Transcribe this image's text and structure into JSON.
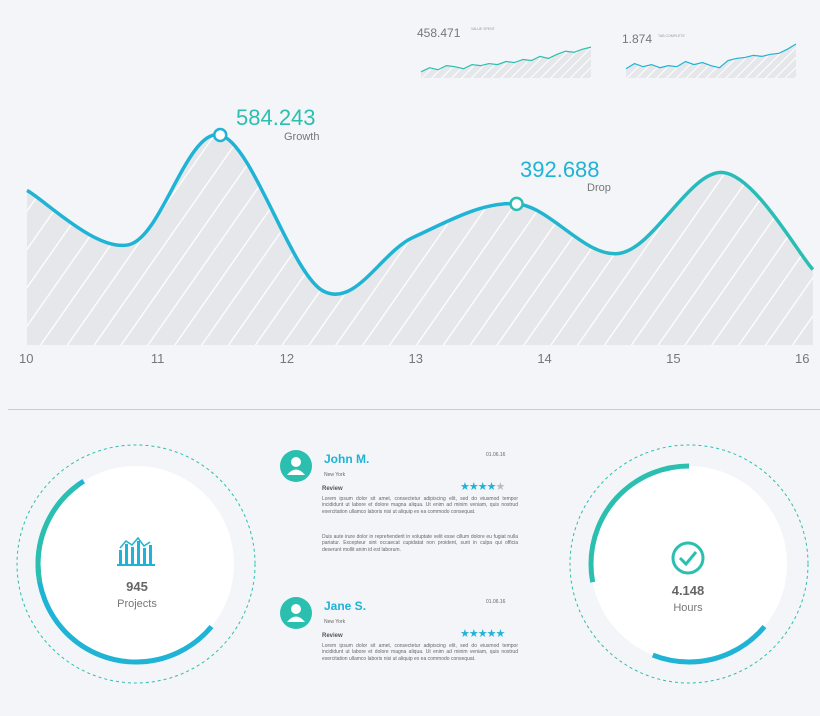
{
  "colors": {
    "teal": "#2bbfb0",
    "blue": "#1fb3d6",
    "fill": "#e6e7ea",
    "text": "#666666"
  },
  "mini_charts": [
    {
      "value": "458.471",
      "caption": "VALUE SPENT",
      "points": [
        6,
        10,
        8,
        12,
        11,
        9,
        13,
        12,
        14,
        13,
        16,
        15,
        18,
        17,
        21,
        19,
        23,
        26,
        25,
        28,
        30
      ]
    },
    {
      "value": "1.874",
      "caption": "TAB COMPLETE",
      "points": [
        9,
        14,
        11,
        13,
        10,
        12,
        11,
        16,
        13,
        15,
        12,
        10,
        17,
        19,
        20,
        22,
        21,
        23,
        24,
        28,
        33
      ]
    }
  ],
  "chart_data": {
    "type": "area",
    "x_ticks": [
      "10",
      "11",
      "12",
      "13",
      "14",
      "15",
      "16"
    ],
    "x": [
      10,
      10.8,
      11.5,
      12.3,
      13.0,
      13.8,
      14.6,
      15.4,
      16.1
    ],
    "values": [
      430,
      280,
      584.243,
      150,
      300,
      392.688,
      255,
      480,
      210
    ],
    "annotations": [
      {
        "value": "584.243",
        "label": "Growth"
      },
      {
        "value": "392.688",
        "label": "Drop"
      }
    ]
  },
  "projects_card": {
    "value": "945",
    "label": "Projects",
    "progress": 0.8
  },
  "hours_card": {
    "value": "4.148",
    "label": "Hours",
    "progress": 0.65
  },
  "reviews": [
    {
      "name": "John M.",
      "location": "New York",
      "date": "01.06.16",
      "review_label": "Review",
      "rating": "★★★★",
      "rating_rest": "★",
      "text1": "Lorem ipsum dolor sit amet, consectetur adipiscing elit, sed do eiusmod tempor incididunt ut labore et dolore magna aliqua. Ut enim ad minim veniam, quis nostrud exercitation ullamco laboris nisi ut aliquip ex ea commodo consequat.",
      "text2": "Duis aute irure dolor in reprehenderit in voluptate velit esse cillum dolore eu fugiat nulla pariatur. Excepteur sint occaecat cupidatat non proident, sunt in culpa qui officia deserunt mollit anim id est laborum."
    },
    {
      "name": "Jane S.",
      "location": "New York",
      "date": "01.06.16",
      "review_label": "Review",
      "rating": "★★★★★",
      "rating_rest": "",
      "text1": "Lorem ipsum dolor sit amet, consectetur adipiscing elit, sed do eiusmod tempor incididunt ut labore et dolore magna aliqua. Ut enim ad minim veniam, quis nostrud exercitation ullamco laboris nisi ut aliquip ex ea commodo consequat."
    }
  ]
}
